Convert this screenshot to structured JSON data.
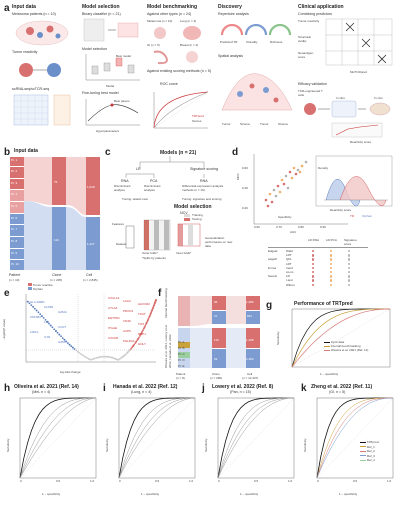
{
  "panel_letters": {
    "a": "a",
    "b": "b",
    "c": "c",
    "d": "d",
    "e": "e",
    "f": "f",
    "g": "g",
    "h": "h",
    "i": "i",
    "j": "j",
    "k": "k"
  },
  "panel_a": {
    "col_titles": [
      "Input data",
      "Model selection",
      "Model benchmarking",
      "Discovery",
      "Clinical application"
    ],
    "melanoma": "Melanoma patients (n = 10)",
    "tumor_reactivity": "Tumor reactivity",
    "scrna": "scRNA-seq/scTCR-seq",
    "binary": "Binary classifier (n = 21)",
    "model_selection": "Model selection",
    "finetune": "Fine-tuning best model",
    "best_model": "Best model",
    "best_param": "Best param.",
    "hyperparams": "Hyperparameters",
    "model_lbl": "Model",
    "other_types": "Against other types (n = 24)",
    "tissues": [
      "Melanoma (n = 10)",
      "Lung (n = 4)",
      "GI (n = 5)",
      "Breast (n = 2)"
    ],
    "against_scoring": "Against existing scoring methods (n = 5)",
    "roc": "ROC curve",
    "trtpred_leg": [
      "TRTpred",
      "Scores"
    ],
    "repertoire": "Repertoire analysis",
    "rep_cats": [
      "Predicted TR",
      "Clonality",
      "Richness"
    ],
    "spatial": "Spatial analysis",
    "spatial_cats": [
      "Tumor",
      "Stroma",
      "Tumor",
      "Stroma"
    ],
    "combining": "Combining predictors",
    "combining_rows": [
      "Tumor reactivity",
      "Structural avidity",
      "Neoantigen score"
    ],
    "mixtcrpred": "MixTCRpred",
    "efficacy": "Efficacy validation",
    "tcr_eng": "TCR-engineered T cells",
    "in_vitro": "In vitro",
    "in_vivo": "In vivo",
    "reactivity_score": "Reactivity score"
  },
  "panel_b": {
    "title": "Input data",
    "patients": [
      "Pt. 1",
      "Pt. 2",
      "Pt. 3",
      "Pt. 4",
      "Pt. 5",
      "Pt. 6",
      "Pt. 7",
      "Pt. 8",
      "Pt. 9",
      "Pt. 10"
    ],
    "clone_vals": [
      "75",
      "110"
    ],
    "cell_vals": [
      "1,618",
      "1,227"
    ],
    "axis": [
      "Patient",
      "Clone",
      "Cell"
    ],
    "axis_n": [
      "(n = 10)",
      "(n = 235)",
      "(n = 2,845)"
    ],
    "legend": [
      "Tumor reactive",
      "Orphan"
    ]
  },
  "panel_c": {
    "title": "Models (n = 21)",
    "lr": "LR",
    "sig": "Signature scoring",
    "rnas": "RNA",
    "pca": "PCA",
    "rna2": "RNA",
    "rna_desc": "Discriminant analysis",
    "pca_desc": "Discriminant analysis",
    "rna2_desc": "Differential expression analysis methods (n = 19)",
    "tuning1": "Tuning: elastic-nets",
    "tuning2": "Tuning: signature and scoring",
    "model_sel": "Model selection",
    "ncv": "NCV",
    "features": "Features",
    "dataset": "Dataset",
    "outer": "Outer folds*",
    "inner": "Inner folds*",
    "splits": "*Splits by patients",
    "training": "Training",
    "testing": "Testing",
    "generalization": "Generalization performance on new data"
  },
  "panel_d": {
    "xlabel": "AUC",
    "ylabel": "MCC",
    "xticks": [
      "0.60",
      "0.70",
      "0.80",
      "0.90"
    ],
    "yticks": [
      "0.20",
      "0.40",
      "0.60"
    ],
    "inset_xlabel": "Reactivity score",
    "inset_ylabel": "Density",
    "legend_spec": "Specificity",
    "legend_items": [
      "TR",
      "Orphan"
    ],
    "table_head": [
      "LR RNA",
      "LR PCA",
      "Signature score"
    ],
    "table_groups": [
      {
        "name": "Edgeid",
        "rows": [
          "Wald",
          "LRT"
        ]
      },
      {
        "name": "edgeR",
        "rows": [
          "QFL",
          "LRT"
        ]
      },
      {
        "name": "limma",
        "rows": [
          "trend",
          "voom"
        ]
      },
      {
        "name": "Seurat",
        "rows": [
          "LR",
          "t-test",
          "Wilcox"
        ]
      }
    ]
  },
  "panel_e": {
    "xlabel": "log-fold change",
    "ylabel": "−log10(P value)",
    "xticks": [
      "−1.0",
      "−0.5",
      "0",
      "0.5",
      "1.0"
    ],
    "yticks": [
      "0",
      "10",
      "20",
      "30",
      "40",
      "50"
    ],
    "genes_left": [
      "HLA-DRB1",
      "KLRB1",
      "GZMH",
      "ZNF683",
      "LTB",
      "CCR7",
      "LMNA",
      "IL7R",
      "GZMK"
    ],
    "genes_right": [
      "CXCL13",
      "LAG3",
      "HAVCR2",
      "CTLA4",
      "PDCD1",
      "TIGIT",
      "ENTPD1",
      "CD39",
      "TOX",
      "ITGAE",
      "ACP5",
      "RBPJ",
      "CXCR6",
      "PHLDA1",
      "GNLY"
    ]
  },
  "panel_f": {
    "group1": "Internal benchmarking",
    "group2": "Oliveira et al. 2021, Lowery et al. 2022, Hanada et al. 2022",
    "left_labels": [
      "Pt. A",
      "Pt. B",
      "Pt. C",
      "Pt. D",
      "Pt. E"
    ],
    "clone_vals": [
      "96",
      "27",
      "110",
      "63"
    ],
    "cell_vals": [
      "1,386",
      "822",
      "1,468",
      "2,484"
    ],
    "axis": [
      "Patient",
      "Clone",
      "Cell"
    ],
    "axis_n": [
      "(n = 8)",
      "(n = 295)",
      "(n = 12,337)"
    ]
  },
  "panel_g": {
    "title": "Performance of TRTpred",
    "xlabel": "1 − specificity",
    "ylabel": "Sensitivity",
    "ticks": [
      "0",
      "0.5",
      "1.0"
    ],
    "legend": [
      "Input data",
      "Internal benchmarking",
      "Oliveira et al. 2021 (Ref. 14)"
    ],
    "colors": [
      "#111111",
      "#c9a13a",
      "#d67b7b"
    ]
  },
  "bottom_panels": [
    {
      "letter": "h",
      "title": "Oliveira et al. 2021 (Ref. 14)",
      "sub": "(MeL n = 4)"
    },
    {
      "letter": "i",
      "title": "Hanada et al. 2022 (Ref. 12)",
      "sub": "(Lung, n = 4)"
    },
    {
      "letter": "j",
      "title": "Lowery et al. 2022 (Ref. 8)",
      "sub": "(Pan, n = 15)"
    },
    {
      "letter": "k",
      "title": "Zheng et al. 2022 (Ref. 11)",
      "sub": "(GI, n = 5)"
    }
  ],
  "bottom_axes": {
    "xlabel": "1 − specificity",
    "ylabel": "Sensitivity",
    "ticks": [
      "0",
      "0.5",
      "1.0"
    ]
  },
  "panel_k_legend": [
    "TRTpred",
    "Ref_1",
    "Ref_2",
    "Ref_3",
    "Ref_4"
  ]
}
